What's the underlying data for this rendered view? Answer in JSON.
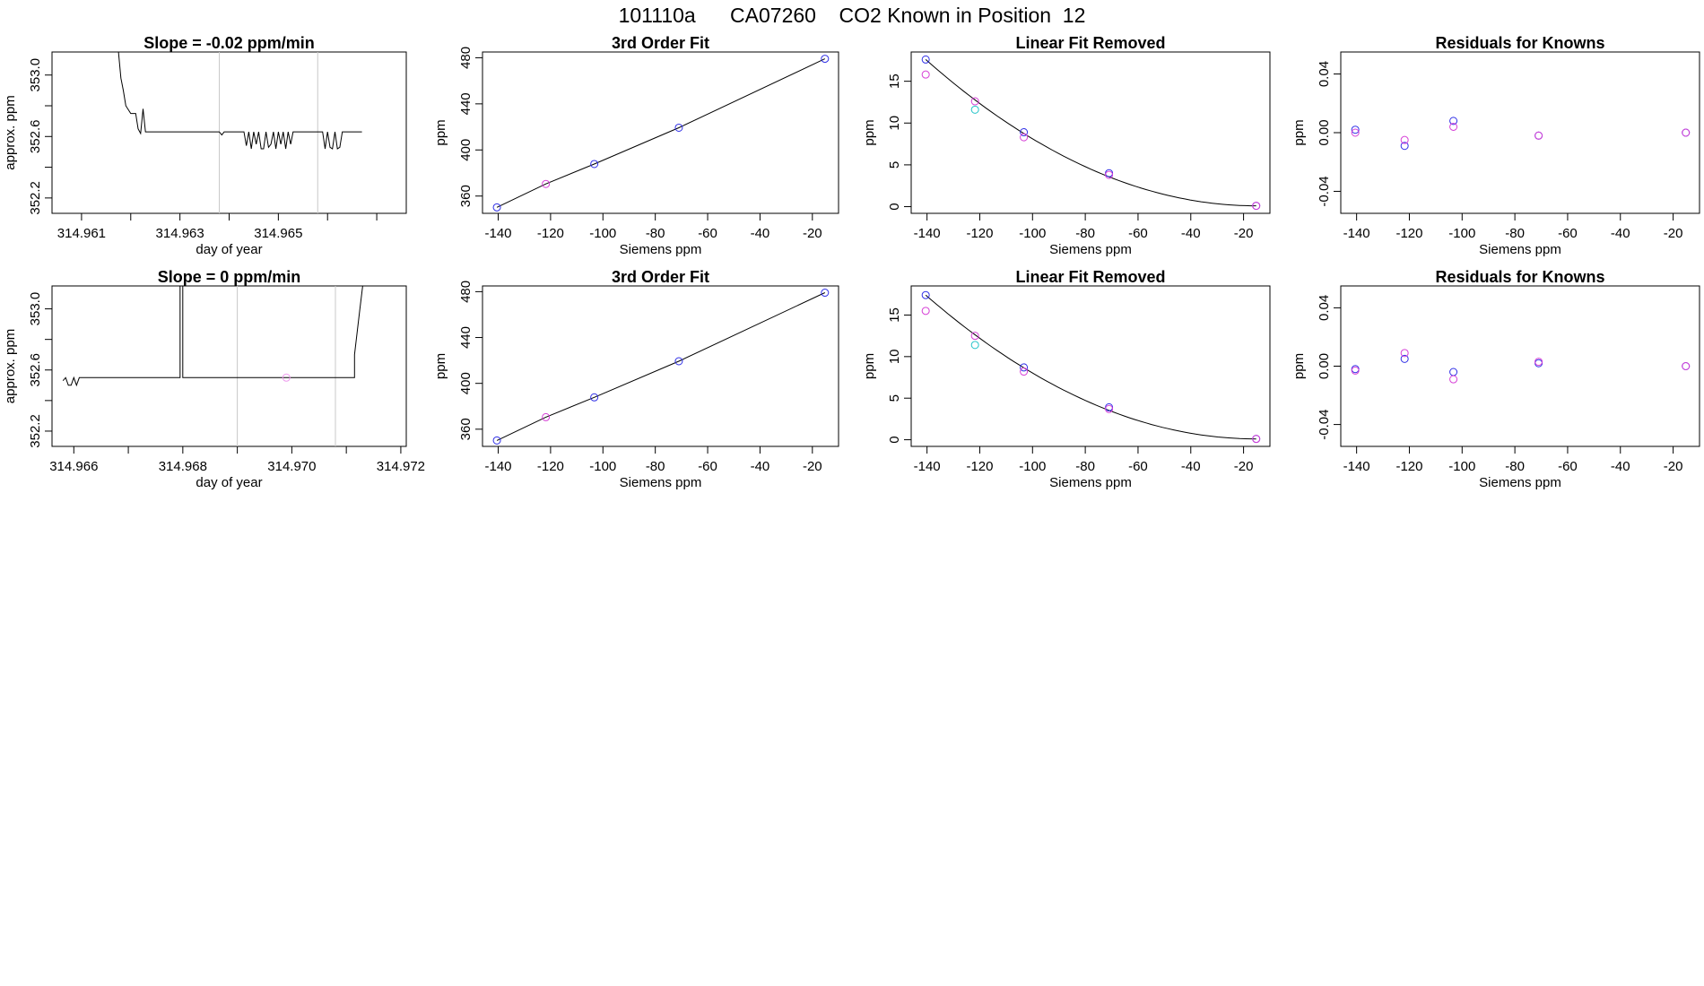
{
  "figure": {
    "title": "101110a      CA07260    CO2 Known in Position  12"
  },
  "colors": {
    "blue": "#2f2fe6",
    "magenta": "#d63fd6",
    "cyan": "#22c3c8",
    "purple": "#8a3fe0",
    "pink": "#ee99ee",
    "line": "#000000",
    "vline": "#c8c8c8"
  },
  "chart_data": [
    {
      "type": "line",
      "title": "Slope =  -0.02  ppm/min",
      "xlabel": "day of year",
      "ylabel": "approx. ppm",
      "xlim": [
        314.9604,
        314.9676
      ],
      "ylim": [
        352.1,
        353.15
      ],
      "x_ticks": [
        314.961,
        314.962,
        314.963,
        314.964,
        314.965,
        314.966,
        314.967
      ],
      "x_tick_labels": [
        "314.961",
        "",
        "314.963",
        "",
        "314.965",
        "",
        ""
      ],
      "y_ticks": [
        352.2,
        352.4,
        352.6,
        352.8,
        353.0
      ],
      "y_tick_labels": [
        "352.2",
        "",
        "352.6",
        "",
        "353.0"
      ],
      "vlines": [
        314.9638,
        314.9658
      ],
      "series": [
        {
          "x": [
            314.96175,
            314.9618,
            314.96185,
            314.9619,
            314.962,
            314.9621,
            314.96215,
            314.9622,
            314.96225,
            314.9623,
            314.96235,
            314.9624,
            314.9625,
            314.9626,
            314.96265,
            314.9627,
            314.9628,
            314.9629,
            314.963,
            314.9631,
            314.9632,
            314.9633,
            314.96335,
            314.9634,
            314.96345,
            314.9635,
            314.9636,
            314.9637,
            314.9638,
            314.96385,
            314.9639,
            314.964,
            314.9641,
            314.9642,
            314.9643,
            314.96435,
            314.9644,
            314.96445,
            314.9645,
            314.96455,
            314.9646,
            314.96465,
            314.9647,
            314.96475,
            314.9648,
            314.96485,
            314.9649,
            314.96495,
            314.965,
            314.96505,
            314.9651,
            314.96515,
            314.9652,
            314.96525,
            314.9653,
            314.96535,
            314.9654,
            314.96545,
            314.9655,
            314.96555,
            314.9656,
            314.9657,
            314.9658,
            314.9659,
            314.96595,
            314.966,
            314.96605,
            314.9661,
            314.96615,
            314.9662,
            314.96625,
            314.9663,
            314.96635,
            314.9664,
            314.9665,
            314.9666,
            314.9667
          ],
          "y": [
            353.15,
            352.98,
            352.9,
            352.8,
            352.75,
            352.75,
            352.65,
            352.62,
            352.78,
            352.63,
            352.63,
            352.63,
            352.63,
            352.63,
            352.63,
            352.63,
            352.63,
            352.63,
            352.63,
            352.63,
            352.63,
            352.63,
            352.63,
            352.63,
            352.63,
            352.63,
            352.63,
            352.63,
            352.63,
            352.61,
            352.63,
            352.63,
            352.63,
            352.63,
            352.63,
            352.54,
            352.63,
            352.52,
            352.63,
            352.55,
            352.63,
            352.52,
            352.52,
            352.63,
            352.53,
            352.55,
            352.63,
            352.52,
            352.63,
            352.55,
            352.63,
            352.52,
            352.63,
            352.55,
            352.63,
            352.63,
            352.63,
            352.63,
            352.63,
            352.63,
            352.63,
            352.63,
            352.63,
            352.63,
            352.52,
            352.63,
            352.53,
            352.52,
            352.63,
            352.52,
            352.53,
            352.63,
            352.63,
            352.63,
            352.63,
            352.63,
            352.63
          ]
        }
      ]
    },
    {
      "type": "scatter",
      "title": "3rd Order Fit",
      "xlabel": "Siemens ppm",
      "ylabel": "ppm",
      "xlim": [
        -146,
        -10
      ],
      "ylim": [
        345,
        485
      ],
      "x_ticks": [
        -140,
        -120,
        -100,
        -80,
        -60,
        -40,
        -20
      ],
      "y_ticks": [
        360,
        400,
        440,
        480
      ],
      "y_tick_labels": [
        "360",
        "400",
        "440",
        "480"
      ],
      "points": [
        {
          "x": -140.5,
          "y": 350.2,
          "color": "blue"
        },
        {
          "x": -121.8,
          "y": 370.5,
          "color": "magenta"
        },
        {
          "x": -103.3,
          "y": 387.8,
          "color": "blue"
        },
        {
          "x": -71.0,
          "y": 419.3,
          "color": "blue"
        },
        {
          "x": -15.2,
          "y": 479.1,
          "color": "blue"
        }
      ],
      "curve": {
        "x": [
          -140.5,
          -121.8,
          -103.3,
          -71.0,
          -15.2
        ],
        "y": [
          350.2,
          370.5,
          387.8,
          419.3,
          479.1
        ]
      }
    },
    {
      "type": "scatter",
      "title": "Linear Fit Removed",
      "xlabel": "Siemens ppm",
      "ylabel": "ppm",
      "xlim": [
        -146,
        -10
      ],
      "ylim": [
        -0.8,
        18.5
      ],
      "x_ticks": [
        -140,
        -120,
        -100,
        -80,
        -60,
        -40,
        -20
      ],
      "y_ticks": [
        0,
        5,
        10,
        15
      ],
      "y_tick_labels": [
        "0",
        "5",
        "10",
        "15"
      ],
      "points": [
        {
          "x": -140.5,
          "y": 17.6,
          "color": "blue"
        },
        {
          "x": -140.5,
          "y": 15.8,
          "color": "magenta"
        },
        {
          "x": -121.8,
          "y": 12.6,
          "color": "magenta"
        },
        {
          "x": -121.8,
          "y": 11.6,
          "color": "cyan"
        },
        {
          "x": -103.3,
          "y": 8.9,
          "color": "blue"
        },
        {
          "x": -103.3,
          "y": 8.3,
          "color": "magenta"
        },
        {
          "x": -71.0,
          "y": 4.0,
          "color": "blue"
        },
        {
          "x": -71.0,
          "y": 3.8,
          "color": "magenta"
        },
        {
          "x": -15.2,
          "y": 0.1,
          "color": "blue"
        },
        {
          "x": -15.2,
          "y": 0.1,
          "color": "magenta"
        }
      ],
      "curve_fn": "quadratic",
      "curve": {
        "x": [
          -140.5,
          -121.8,
          -103.3,
          -71.0,
          -15.2
        ],
        "y": [
          17.6,
          12.8,
          8.7,
          3.9,
          0.1
        ]
      }
    },
    {
      "type": "scatter",
      "title": "Residuals for Knowns",
      "xlabel": "Siemens ppm",
      "ylabel": "ppm",
      "xlim": [
        -146,
        -10
      ],
      "ylim": [
        -0.055,
        0.055
      ],
      "x_ticks": [
        -140,
        -120,
        -100,
        -80,
        -60,
        -40,
        -20
      ],
      "y_ticks": [
        -0.04,
        0.0,
        0.04
      ],
      "y_tick_labels": [
        "-0.04",
        "0.00",
        "0.04"
      ],
      "points": [
        {
          "x": -140.5,
          "y": 0.002,
          "color": "blue"
        },
        {
          "x": -140.5,
          "y": 0.0,
          "color": "magenta"
        },
        {
          "x": -121.8,
          "y": -0.009,
          "color": "blue"
        },
        {
          "x": -121.8,
          "y": -0.005,
          "color": "magenta"
        },
        {
          "x": -103.3,
          "y": 0.008,
          "color": "blue"
        },
        {
          "x": -103.3,
          "y": 0.004,
          "color": "magenta"
        },
        {
          "x": -71.0,
          "y": -0.002,
          "color": "blue"
        },
        {
          "x": -71.0,
          "y": -0.002,
          "color": "magenta"
        },
        {
          "x": -15.2,
          "y": 0.0,
          "color": "blue"
        },
        {
          "x": -15.2,
          "y": 0.0,
          "color": "magenta"
        }
      ]
    },
    {
      "type": "line",
      "title": "Slope =  0  ppm/min",
      "xlabel": "day of year",
      "ylabel": "approx. ppm",
      "xlim": [
        314.9656,
        314.9721
      ],
      "ylim": [
        352.1,
        353.15
      ],
      "x_ticks": [
        314.966,
        314.967,
        314.968,
        314.969,
        314.97,
        314.971,
        314.972
      ],
      "x_tick_labels": [
        "314.966",
        "",
        "314.968",
        "",
        "314.970",
        "",
        "314.972"
      ],
      "y_ticks": [
        352.2,
        352.4,
        352.6,
        352.8,
        353.0
      ],
      "y_tick_labels": [
        "352.2",
        "",
        "352.6",
        "",
        "353.0"
      ],
      "vlines": [
        314.969,
        314.9708
      ],
      "series": [
        {
          "x": [
            314.9658,
            314.96585,
            314.9659,
            314.96595,
            314.966,
            314.96605,
            314.9661,
            314.9662,
            314.9663,
            314.9664,
            314.9665,
            314.9666,
            314.9667,
            314.9668,
            314.9669,
            314.967,
            314.9671,
            314.9672,
            314.9673,
            314.9674,
            314.9675,
            314.9676,
            314.9677,
            314.9678,
            314.96795,
            314.96795,
            314.968,
            314.968,
            314.9681,
            314.9682,
            314.9684,
            314.9686,
            314.9688,
            314.969,
            314.9692,
            314.9694,
            314.9696,
            314.9698,
            314.97,
            314.9702,
            314.9704,
            314.9706,
            314.9708,
            314.971,
            314.97115,
            314.97115,
            314.9712,
            314.97125,
            314.9713,
            314.97135
          ],
          "y": [
            352.53,
            352.55,
            352.5,
            352.5,
            352.55,
            352.5,
            352.55,
            352.55,
            352.55,
            352.55,
            352.55,
            352.55,
            352.55,
            352.55,
            352.55,
            352.55,
            352.55,
            352.55,
            352.55,
            352.55,
            352.55,
            352.55,
            352.55,
            352.55,
            352.55,
            353.15,
            353.15,
            352.55,
            352.55,
            352.55,
            352.55,
            352.55,
            352.55,
            352.55,
            352.55,
            352.55,
            352.55,
            352.55,
            352.55,
            352.55,
            352.55,
            352.55,
            352.55,
            352.55,
            352.55,
            352.7,
            352.85,
            353.0,
            353.15,
            353.15
          ]
        }
      ],
      "extra_points": [
        {
          "x": 314.9699,
          "y": 352.55,
          "color": "pink"
        }
      ]
    },
    {
      "type": "scatter",
      "title": "3rd Order Fit",
      "xlabel": "Siemens ppm",
      "ylabel": "ppm",
      "xlim": [
        -146,
        -10
      ],
      "ylim": [
        345,
        485
      ],
      "x_ticks": [
        -140,
        -120,
        -100,
        -80,
        -60,
        -40,
        -20
      ],
      "y_ticks": [
        360,
        400,
        440,
        480
      ],
      "y_tick_labels": [
        "360",
        "400",
        "440",
        "480"
      ],
      "points": [
        {
          "x": -140.5,
          "y": 350.2,
          "color": "blue"
        },
        {
          "x": -121.8,
          "y": 370.5,
          "color": "magenta"
        },
        {
          "x": -103.3,
          "y": 387.8,
          "color": "blue"
        },
        {
          "x": -71.0,
          "y": 419.3,
          "color": "blue"
        },
        {
          "x": -15.2,
          "y": 479.1,
          "color": "blue"
        }
      ],
      "curve": {
        "x": [
          -140.5,
          -121.8,
          -103.3,
          -71.0,
          -15.2
        ],
        "y": [
          350.2,
          370.5,
          387.8,
          419.3,
          479.1
        ]
      }
    },
    {
      "type": "scatter",
      "title": "Linear Fit Removed",
      "xlabel": "Siemens ppm",
      "ylabel": "ppm",
      "xlim": [
        -146,
        -10
      ],
      "ylim": [
        -0.8,
        18.5
      ],
      "x_ticks": [
        -140,
        -120,
        -100,
        -80,
        -60,
        -40,
        -20
      ],
      "y_ticks": [
        0,
        5,
        10,
        15
      ],
      "y_tick_labels": [
        "0",
        "5",
        "10",
        "15"
      ],
      "points": [
        {
          "x": -140.5,
          "y": 17.4,
          "color": "blue"
        },
        {
          "x": -140.5,
          "y": 15.5,
          "color": "magenta"
        },
        {
          "x": -121.8,
          "y": 12.5,
          "color": "magenta"
        },
        {
          "x": -121.8,
          "y": 11.4,
          "color": "cyan"
        },
        {
          "x": -103.3,
          "y": 8.7,
          "color": "blue"
        },
        {
          "x": -103.3,
          "y": 8.2,
          "color": "magenta"
        },
        {
          "x": -71.0,
          "y": 3.9,
          "color": "blue"
        },
        {
          "x": -71.0,
          "y": 3.7,
          "color": "magenta"
        },
        {
          "x": -15.2,
          "y": 0.1,
          "color": "blue"
        },
        {
          "x": -15.2,
          "y": 0.1,
          "color": "magenta"
        }
      ],
      "curve_fn": "quadratic",
      "curve": {
        "x": [
          -140.5,
          -121.8,
          -103.3,
          -71.0,
          -15.2
        ],
        "y": [
          17.4,
          12.6,
          8.6,
          3.8,
          0.1
        ]
      }
    },
    {
      "type": "scatter",
      "title": "Residuals for Knowns",
      "xlabel": "Siemens ppm",
      "ylabel": "ppm",
      "xlim": [
        -146,
        -10
      ],
      "ylim": [
        -0.055,
        0.055
      ],
      "x_ticks": [
        -140,
        -120,
        -100,
        -80,
        -60,
        -40,
        -20
      ],
      "y_ticks": [
        -0.04,
        0.0,
        0.04
      ],
      "y_tick_labels": [
        "-0.04",
        "0.00",
        "0.04"
      ],
      "points": [
        {
          "x": -140.5,
          "y": -0.002,
          "color": "blue"
        },
        {
          "x": -140.5,
          "y": -0.003,
          "color": "magenta"
        },
        {
          "x": -121.8,
          "y": 0.005,
          "color": "blue"
        },
        {
          "x": -121.8,
          "y": 0.009,
          "color": "magenta"
        },
        {
          "x": -103.3,
          "y": -0.004,
          "color": "blue"
        },
        {
          "x": -103.3,
          "y": -0.009,
          "color": "magenta"
        },
        {
          "x": -71.0,
          "y": 0.002,
          "color": "blue"
        },
        {
          "x": -71.0,
          "y": 0.003,
          "color": "magenta"
        },
        {
          "x": -15.2,
          "y": 0.0,
          "color": "blue"
        },
        {
          "x": -15.2,
          "y": 0.0,
          "color": "magenta"
        }
      ]
    }
  ]
}
